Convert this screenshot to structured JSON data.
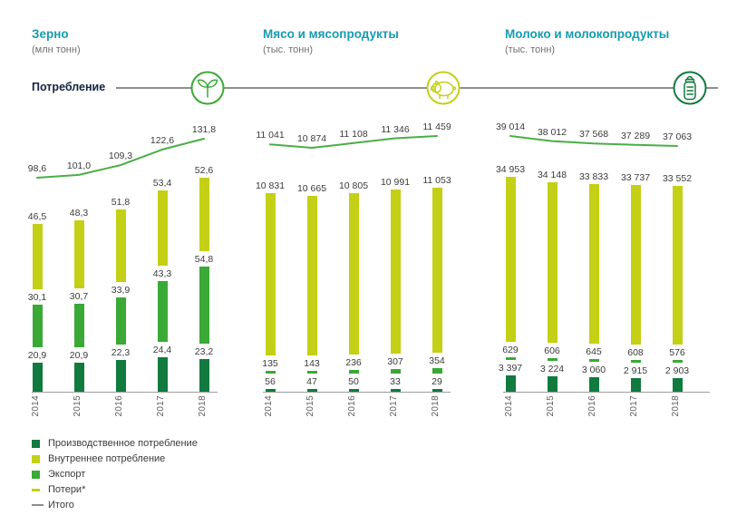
{
  "header": {
    "consumption_label": "Потребление"
  },
  "colors": {
    "title_teal": "#169bb0",
    "production_green": "#117a3e",
    "domestic_lime": "#c3d016",
    "export_green": "#3aa935",
    "total_line_green": "#4bae46",
    "legend_total_gray": "#8c8c8c"
  },
  "legend": [
    {
      "label": "Производственное потребление",
      "swatch_color": "#117a3e",
      "swatch_type": "square"
    },
    {
      "label": "Внутреннее потребление",
      "swatch_color": "#c3d016",
      "swatch_type": "square"
    },
    {
      "label": "Экспорт",
      "swatch_color": "#3aa935",
      "swatch_type": "square"
    },
    {
      "label": "Потери*",
      "swatch_color": "#c3d016",
      "swatch_type": "dash"
    },
    {
      "label": "Итого",
      "swatch_color": "#8c8c8c",
      "swatch_type": "line"
    }
  ],
  "chart_data": [
    {
      "type": "bar",
      "title": "Зерно",
      "subtitle": "(млн тонн)",
      "unit": "млн тонн",
      "icon": "sprout-icon",
      "categories": [
        "2014",
        "2015",
        "2016",
        "2017",
        "2018"
      ],
      "series": [
        {
          "name": "Производственное потребление",
          "values": [
            20.9,
            20.9,
            22.3,
            24.4,
            23.2
          ],
          "labels": [
            "20,9",
            "20,9",
            "22,3",
            "24,4",
            "23,2"
          ]
        },
        {
          "name": "Экспорт",
          "values": [
            30.1,
            30.7,
            33.9,
            43.3,
            54.8
          ],
          "labels": [
            "30,1",
            "30,7",
            "33,9",
            "43,3",
            "54,8"
          ]
        },
        {
          "name": "Внутреннее потребление",
          "values": [
            46.5,
            48.3,
            51.8,
            53.4,
            52.6
          ],
          "labels": [
            "46,5",
            "48,3",
            "51,8",
            "53,4",
            "52,6"
          ]
        }
      ],
      "total": {
        "name": "Итого",
        "values": [
          98.6,
          101.0,
          109.3,
          122.6,
          131.8
        ],
        "labels": [
          "98,6",
          "101,0",
          "109,3",
          "122,6",
          "131,8"
        ]
      }
    },
    {
      "type": "bar",
      "title": "Мясо и мясопродукты",
      "subtitle": "(тыс. тонн)",
      "unit": "тыс. тонн",
      "icon": "pig-icon",
      "categories": [
        "2014",
        "2015",
        "2016",
        "2017",
        "2018"
      ],
      "series": [
        {
          "name": "Производственное потребление",
          "values": [
            56,
            47,
            50,
            33,
            29
          ],
          "labels": [
            "56",
            "47",
            "50",
            "33",
            "29"
          ]
        },
        {
          "name": "Экспорт",
          "values": [
            135,
            143,
            236,
            307,
            354
          ],
          "labels": [
            "135",
            "143",
            "236",
            "307",
            "354"
          ]
        },
        {
          "name": "Внутреннее потребление",
          "values": [
            10831,
            10665,
            10805,
            10991,
            11053
          ],
          "labels": [
            "10 831",
            "10 665",
            "10 805",
            "10 991",
            "11 053"
          ]
        }
      ],
      "total": {
        "name": "Итого",
        "values": [
          11041,
          10874,
          11108,
          11346,
          11459
        ],
        "labels": [
          "11 041",
          "10 874",
          "11 108",
          "11 346",
          "11 459"
        ]
      }
    },
    {
      "type": "bar",
      "title": "Молоко и молокопродукты",
      "subtitle": "(тыс. тонн)",
      "unit": "тыс. тонн",
      "icon": "baby-bottle-icon",
      "categories": [
        "2014",
        "2015",
        "2016",
        "2017",
        "2018"
      ],
      "series": [
        {
          "name": "Производственное потребление",
          "values": [
            3397,
            3224,
            3060,
            2915,
            2903
          ],
          "labels": [
            "3 397",
            "3 224",
            "3 060",
            "2 915",
            "2 903"
          ]
        },
        {
          "name": "Экспорт",
          "values": [
            629,
            606,
            645,
            608,
            576
          ],
          "labels": [
            "629",
            "606",
            "645",
            "608",
            "576"
          ]
        },
        {
          "name": "Внутреннее потребление",
          "values": [
            34953,
            34148,
            33833,
            33737,
            33552
          ],
          "labels": [
            "34 953",
            "34 148",
            "33 833",
            "33 737",
            "33 552"
          ]
        }
      ],
      "total": {
        "name": "Итого",
        "values": [
          39014,
          38012,
          37568,
          37289,
          37063
        ],
        "labels": [
          "39 014",
          "38 012",
          "37 568",
          "37 289",
          "37 063"
        ]
      }
    }
  ]
}
